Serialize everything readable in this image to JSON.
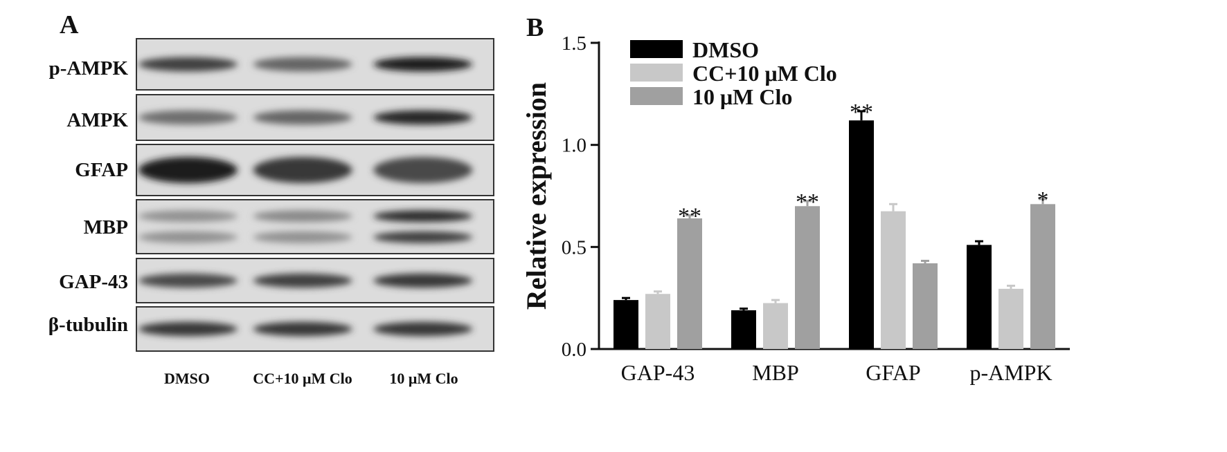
{
  "panel_a": {
    "label": "A",
    "rows": [
      {
        "label": "p-AMPK",
        "bands": [
          0.75,
          0.55,
          0.95
        ]
      },
      {
        "label": "AMPK",
        "bands": [
          0.5,
          0.55,
          0.9
        ]
      },
      {
        "label": "GFAP",
        "bands": [
          0.95,
          0.8,
          0.7
        ]
      },
      {
        "label": "MBP",
        "bands": [
          0.3,
          0.35,
          0.85
        ]
      },
      {
        "label": "GAP-43",
        "bands": [
          0.7,
          0.75,
          0.8
        ]
      },
      {
        "label": "β-tubulin",
        "bands": [
          0.8,
          0.8,
          0.8
        ]
      }
    ],
    "lanes": [
      "DMSO",
      "CC+10 μM Clo",
      "10 μM Clo"
    ]
  },
  "chart_data": {
    "type": "bar",
    "panel_label": "B",
    "title": "",
    "xlabel": "",
    "ylabel": "Relative expression",
    "ylim": [
      0,
      1.5
    ],
    "yticks": [
      "0.0",
      "0.5",
      "1.0",
      "1.5"
    ],
    "categories": [
      "GAP-43",
      "MBP",
      "GFAP",
      "p-AMPK"
    ],
    "series": [
      {
        "name": "DMSO",
        "color": "#000000",
        "values": [
          0.24,
          0.19,
          1.12,
          0.51
        ],
        "errors": [
          0.01,
          0.008,
          0.045,
          0.018
        ],
        "annotations": [
          "",
          "",
          "**",
          ""
        ]
      },
      {
        "name": "CC+10 μM Clo",
        "color": "#c8c8c8",
        "values": [
          0.27,
          0.225,
          0.675,
          0.295
        ],
        "errors": [
          0.012,
          0.015,
          0.035,
          0.015
        ],
        "annotations": [
          "",
          "",
          "",
          ""
        ]
      },
      {
        "name": "10 μM Clo",
        "color": "#a0a0a0",
        "values": [
          0.64,
          0.7,
          0.42,
          0.71
        ],
        "errors": [
          0.015,
          0.025,
          0.012,
          0.025
        ],
        "annotations": [
          "**",
          "**",
          "",
          "*"
        ]
      }
    ],
    "legend_position": "top-left"
  }
}
